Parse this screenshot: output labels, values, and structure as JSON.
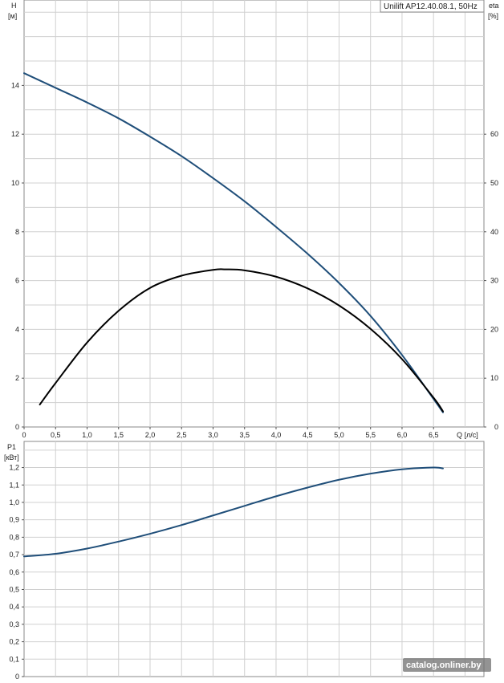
{
  "chart_data": [
    {
      "type": "line",
      "title": "",
      "legend": "Unilift AP12.40.08.1, 50Hz",
      "xlabel": "Q [л/с]",
      "ylabel": "H\n[м]",
      "y2label": "eta\n[%]",
      "xlim": [
        0,
        7.3
      ],
      "ylim": [
        0,
        17.5
      ],
      "y2lim": [
        0,
        87.5
      ],
      "x_ticks": [
        0,
        0.5,
        1.0,
        1.5,
        2.0,
        2.5,
        3.0,
        3.5,
        4.0,
        4.5,
        5.0,
        5.5,
        6.0,
        6.5
      ],
      "x_tick_labels": [
        "0",
        "0,5",
        "1,0",
        "1,5",
        "2,0",
        "2,5",
        "3,0",
        "3,5",
        "4,0",
        "4,5",
        "5,0",
        "5,5",
        "6,0",
        "6,5"
      ],
      "y_ticks": [
        0,
        2,
        4,
        6,
        8,
        10,
        12,
        14
      ],
      "y_tick_labels": [
        "0",
        "2",
        "4",
        "6",
        "8",
        "10",
        "12",
        "14"
      ],
      "y2_ticks": [
        0,
        10,
        20,
        30,
        40,
        50,
        60
      ],
      "y2_tick_labels": [
        "0",
        "10",
        "20",
        "30",
        "40",
        "50",
        "60"
      ],
      "grid": true,
      "series": [
        {
          "axis": "left",
          "color": "#1f4e79",
          "x": [
            0,
            0.5,
            1.0,
            1.5,
            2.0,
            2.5,
            3.0,
            3.5,
            4.0,
            4.5,
            5.0,
            5.5,
            6.0,
            6.5,
            6.65
          ],
          "y": [
            14.5,
            13.9,
            13.3,
            12.65,
            11.9,
            11.1,
            10.2,
            9.25,
            8.2,
            7.1,
            5.9,
            4.55,
            2.95,
            1.15,
            0.6
          ]
        },
        {
          "axis": "right",
          "color": "#000000",
          "x": [
            0.25,
            0.5,
            1.0,
            1.5,
            2.0,
            2.5,
            3.0,
            3.2,
            3.5,
            4.0,
            4.5,
            5.0,
            5.5,
            6.0,
            6.5,
            6.65
          ],
          "y": [
            4.6,
            9.0,
            17.3,
            23.8,
            28.5,
            31.0,
            32.2,
            32.3,
            32.1,
            30.8,
            28.4,
            24.9,
            20.1,
            13.9,
            6.0,
            3.2
          ]
        }
      ]
    },
    {
      "type": "line",
      "title": "",
      "xlabel": "",
      "ylabel": "P1\n[кВт]",
      "xlim": [
        0,
        7.3
      ],
      "ylim": [
        0,
        1.35
      ],
      "x_ticks": [
        0,
        0.5,
        1.0,
        1.5,
        2.0,
        2.5,
        3.0,
        3.5,
        4.0,
        4.5,
        5.0,
        5.5,
        6.0,
        6.5
      ],
      "y_ticks": [
        0,
        0.1,
        0.2,
        0.3,
        0.4,
        0.5,
        0.6,
        0.7,
        0.8,
        0.9,
        1.0,
        1.1,
        1.2
      ],
      "y_tick_labels": [
        "0",
        "0,1",
        "0,2",
        "0,3",
        "0,4",
        "0,5",
        "0,6",
        "0,7",
        "0,8",
        "0,9",
        "1,0",
        "1,1",
        "1,2"
      ],
      "grid": true,
      "series": [
        {
          "axis": "left",
          "color": "#1f4e79",
          "x": [
            0,
            0.5,
            1.0,
            1.5,
            2.0,
            2.5,
            3.0,
            3.5,
            4.0,
            4.5,
            5.0,
            5.5,
            6.0,
            6.5,
            6.65
          ],
          "y": [
            0.69,
            0.705,
            0.735,
            0.775,
            0.82,
            0.87,
            0.925,
            0.98,
            1.035,
            1.085,
            1.13,
            1.165,
            1.19,
            1.2,
            1.195
          ]
        }
      ]
    }
  ],
  "watermark": "catalog.onliner.by"
}
